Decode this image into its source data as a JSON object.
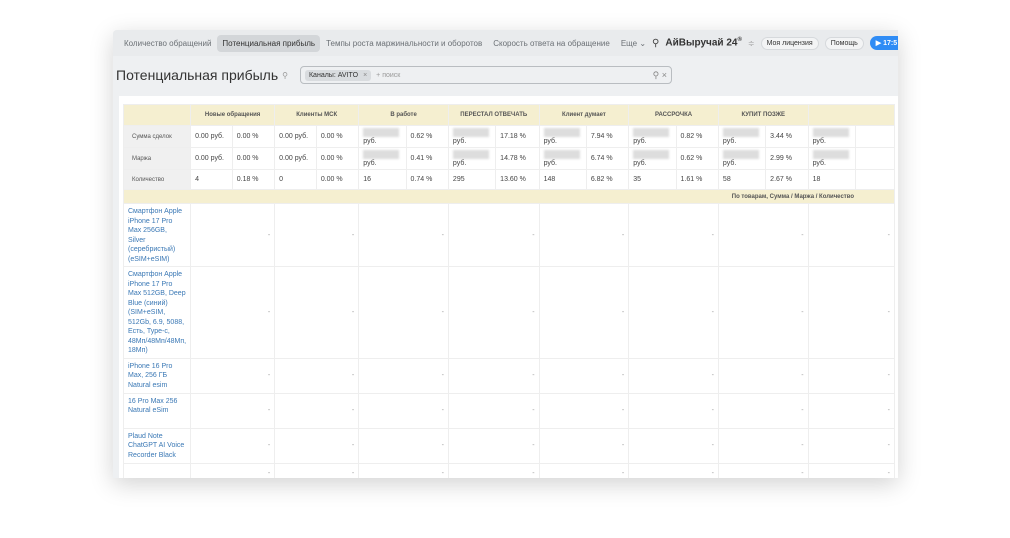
{
  "nav": {
    "tabs": [
      "Количество обращений",
      "Потенциальная прибыль",
      "Темпы роста маржинальности и оборотов",
      "Скорость ответа на обращение",
      "Еще"
    ],
    "active": 1,
    "brand": "АйВыручай 24",
    "brand_mark": "®",
    "license": "Моя лицензия",
    "help": "Помощь",
    "time": "▶ 17:5"
  },
  "page": {
    "title": "Потенциальная прибыль",
    "filter_chip": "Каналы: AVITO",
    "search_placeholder": "+ поиск"
  },
  "table": {
    "groups": [
      "Новые обращения",
      "Клиенты МСК",
      "В работе",
      "ПЕРЕСТАЛ ОТВЕЧАТЬ",
      "Клиент думает",
      "РАССРОЧКА",
      "КУПИТ ПОЗЖЕ",
      ""
    ],
    "rows": [
      {
        "label": "Сумма сделок",
        "cells": [
          [
            "0.00 руб.",
            "0.00 %"
          ],
          [
            "0.00 руб.",
            "0.00 %"
          ],
          [
            "руб.",
            "0.62 %"
          ],
          [
            "руб.",
            "17.18 %"
          ],
          [
            "руб.",
            "7.94 %"
          ],
          [
            "руб.",
            "0.82 %"
          ],
          [
            "руб.",
            "3.44 %"
          ],
          [
            "руб.",
            ""
          ]
        ]
      },
      {
        "label": "Маржа",
        "cells": [
          [
            "0.00 руб.",
            "0.00 %"
          ],
          [
            "0.00 руб.",
            "0.00 %"
          ],
          [
            "руб.",
            "0.41 %"
          ],
          [
            "руб.",
            "14.78 %"
          ],
          [
            "руб.",
            "6.74 %"
          ],
          [
            "руб.",
            "0.62 %"
          ],
          [
            "руб.",
            "2.99 %"
          ],
          [
            "руб.",
            ""
          ]
        ]
      },
      {
        "label": "Количество",
        "cells": [
          [
            "4",
            "0.18 %"
          ],
          [
            "0",
            "0.00 %"
          ],
          [
            "16",
            "0.74 %"
          ],
          [
            "295",
            "13.60 %"
          ],
          [
            "148",
            "6.82 %"
          ],
          [
            "35",
            "1.61 %"
          ],
          [
            "58",
            "2.67 %"
          ],
          [
            "18",
            ""
          ]
        ]
      }
    ],
    "band": "По товарам, Сумма / Маржа / Количество",
    "products": [
      "Смартфон Apple iPhone 17 Pro Max 256GB, Silver (серебристый) (eSIM+eSIM)",
      "Смартфон Apple iPhone 17 Pro Max 512GB, Deep Blue (синий) (SIM+eSIM, 512Gb, 6.9, 5088, Есть, Type-c, 48Мп/48Мп/48Мп, 18Мп)",
      "iPhone 16 Pro Max, 256 ГБ Natural esim",
      "16 Pro Max 256 Natural eSim",
      "Plaud Note ChatGPT AI Voice Recorder Black",
      ""
    ],
    "empty": "-"
  }
}
